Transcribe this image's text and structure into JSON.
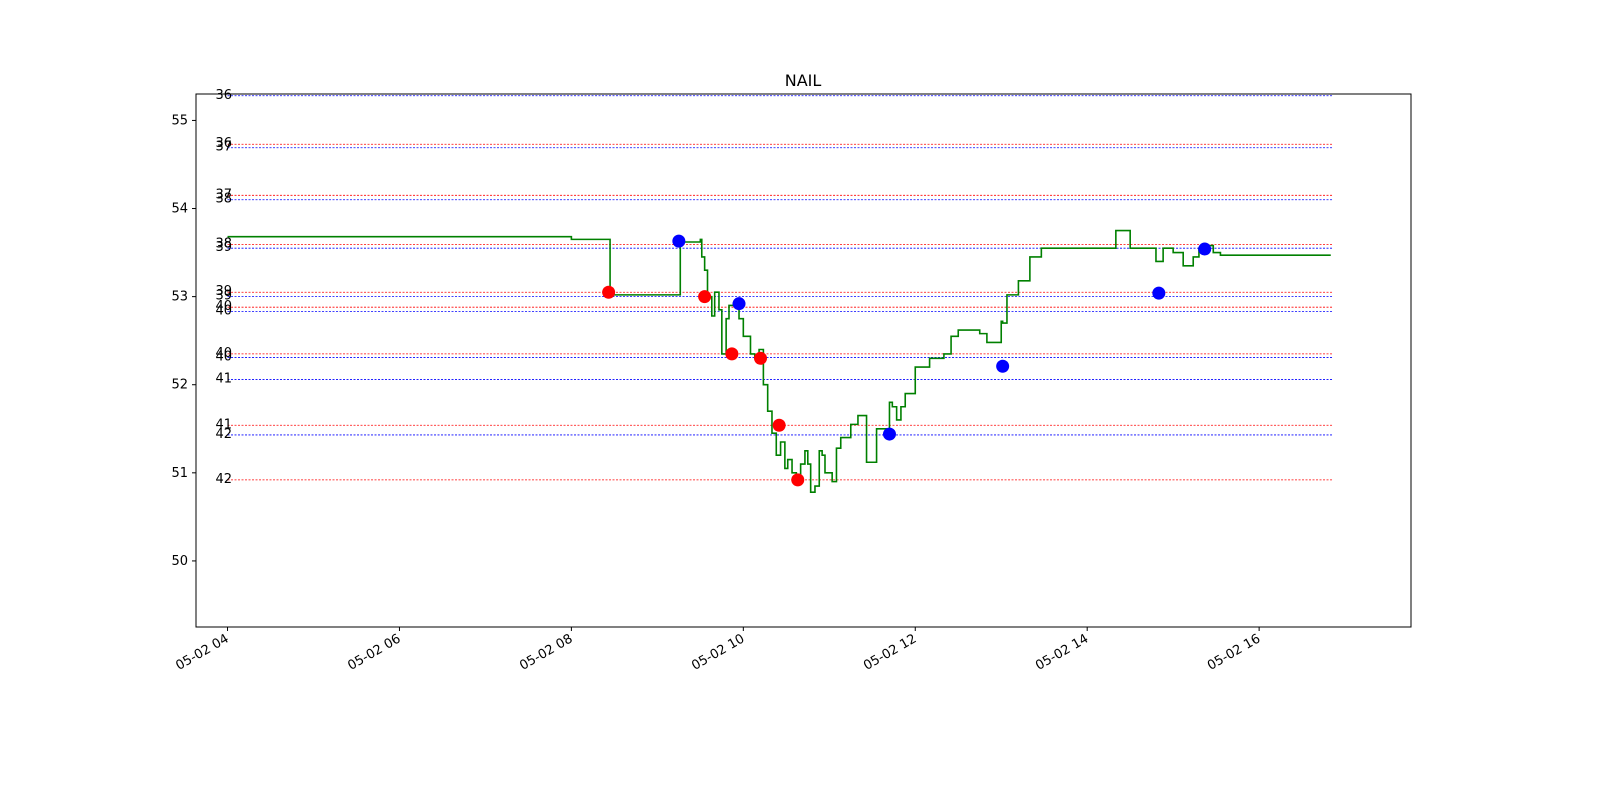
{
  "chart_data": {
    "type": "line",
    "title": "NAIL",
    "xlabel": "",
    "ylabel": "",
    "ylim": [
      49.25,
      55.3
    ],
    "xlim": [
      "05-02 03:38",
      "05-02 17:46"
    ],
    "grid": false,
    "x_ticks": [
      "05-02 04",
      "05-02 06",
      "05-02 08",
      "05-02 10",
      "05-02 12",
      "05-02 14",
      "05-02 16"
    ],
    "y_ticks": [
      50,
      51,
      52,
      53,
      54,
      55
    ],
    "colors": {
      "price": "#008000",
      "buy": "#ff0000",
      "sell": "#0000ff",
      "frame": "#000000"
    },
    "series": [
      {
        "type": "line",
        "x": [
          "05-02 04:00",
          "05-02 08:00",
          "05-02 08:00",
          "05-02 08:26",
          "05-02 08:27",
          "05-02 09:15",
          "05-02 09:16",
          "05-02 09:30",
          "05-02 09:31",
          "05-02 09:33",
          "05-02 09:35",
          "05-02 09:38",
          "05-02 09:40",
          "05-02 09:43",
          "05-02 09:45",
          "05-02 09:48",
          "05-02 09:50",
          "05-02 09:53",
          "05-02 09:55",
          "05-02 09:57",
          "05-02 10:00",
          "05-02 10:05",
          "05-02 10:08",
          "05-02 10:11",
          "05-02 10:14",
          "05-02 10:17",
          "05-02 10:20",
          "05-02 10:23",
          "05-02 10:26",
          "05-02 10:29",
          "05-02 10:31",
          "05-02 10:34",
          "05-02 10:37",
          "05-02 10:40",
          "05-02 10:43",
          "05-02 10:45",
          "05-02 10:47",
          "05-02 10:50",
          "05-02 10:53",
          "05-02 10:55",
          "05-02 10:57",
          "05-02 11:02",
          "05-02 11:05",
          "05-02 11:08",
          "05-02 11:15",
          "05-02 11:20",
          "05-02 11:22",
          "05-02 11:26",
          "05-02 11:28",
          "05-02 11:33",
          "05-02 11:35",
          "05-02 11:42",
          "05-02 11:44",
          "05-02 11:47",
          "05-02 11:50",
          "05-02 11:53",
          "05-02 12:00",
          "05-02 12:10",
          "05-02 12:20",
          "05-02 12:25",
          "05-02 12:30",
          "05-02 12:35",
          "05-02 12:45",
          "05-02 12:50",
          "05-02 12:55",
          "05-02 13:00",
          "05-02 13:01",
          "05-02 13:04",
          "05-02 13:12",
          "05-02 13:20",
          "05-02 13:28",
          "05-02 14:20",
          "05-02 14:30",
          "05-02 14:48",
          "05-02 14:53",
          "05-02 15:00",
          "05-02 15:07",
          "05-02 15:14",
          "05-02 15:18",
          "05-02 15:23",
          "05-02 15:28",
          "05-02 15:33",
          "05-02 15:38",
          "05-02 15:43",
          "05-02 15:48",
          "05-02 15:55",
          "05-02 16:00",
          "05-02 16:10",
          "05-02 16:50"
        ],
        "values": [
          53.68,
          53.68,
          53.65,
          53.65,
          53.02,
          53.02,
          53.62,
          53.65,
          53.45,
          53.3,
          53.0,
          52.78,
          53.05,
          52.85,
          52.35,
          52.75,
          52.9,
          52.92,
          52.9,
          52.75,
          52.55,
          52.35,
          52.3,
          52.4,
          52.0,
          51.7,
          51.45,
          51.2,
          51.35,
          51.05,
          51.15,
          51.0,
          50.98,
          51.1,
          51.25,
          51.1,
          50.78,
          50.85,
          51.25,
          51.2,
          51.0,
          50.9,
          51.28,
          51.4,
          51.55,
          51.65,
          51.65,
          51.12,
          51.12,
          51.5,
          51.5,
          51.8,
          51.75,
          51.6,
          51.75,
          51.9,
          52.2,
          52.3,
          52.35,
          52.55,
          52.62,
          52.62,
          52.58,
          52.48,
          52.48,
          52.72,
          52.7,
          53.02,
          53.18,
          53.45,
          53.55,
          53.75,
          53.55,
          53.4,
          53.55,
          53.5,
          53.35,
          53.45,
          53.55,
          53.58,
          53.5,
          53.47,
          53.47,
          53.47,
          53.47,
          53.47,
          53.47,
          53.47,
          53.47
        ],
        "step": true
      }
    ],
    "markers": [
      {
        "kind": "buy",
        "x": "05-02 08:26",
        "y": 53.05
      },
      {
        "kind": "sell",
        "x": "05-02 09:15",
        "y": 53.63
      },
      {
        "kind": "buy",
        "x": "05-02 09:33",
        "y": 53.0
      },
      {
        "kind": "buy",
        "x": "05-02 09:52",
        "y": 52.35
      },
      {
        "kind": "sell",
        "x": "05-02 09:57",
        "y": 52.92
      },
      {
        "kind": "buy",
        "x": "05-02 10:12",
        "y": 52.3
      },
      {
        "kind": "buy",
        "x": "05-02 10:25",
        "y": 51.54
      },
      {
        "kind": "buy",
        "x": "05-02 10:38",
        "y": 50.92
      },
      {
        "kind": "sell",
        "x": "05-02 11:42",
        "y": 51.44
      },
      {
        "kind": "sell",
        "x": "05-02 13:01",
        "y": 52.21
      },
      {
        "kind": "sell",
        "x": "05-02 14:50",
        "y": 53.04
      },
      {
        "kind": "sell",
        "x": "05-02 15:22",
        "y": 53.54
      }
    ],
    "levels": [
      {
        "label": "36",
        "y": 55.28,
        "color": "blue"
      },
      {
        "label": "36",
        "y": 54.73,
        "color": "red"
      },
      {
        "label": "37",
        "y": 54.69,
        "color": "blue"
      },
      {
        "label": "37",
        "y": 54.15,
        "color": "red"
      },
      {
        "label": "38",
        "y": 54.1,
        "color": "blue"
      },
      {
        "label": "38",
        "y": 53.59,
        "color": "red"
      },
      {
        "label": "39",
        "y": 53.55,
        "color": "blue"
      },
      {
        "label": "39",
        "y": 53.05,
        "color": "red"
      },
      {
        "label": "39",
        "y": 53.0,
        "color": "blue"
      },
      {
        "label": "40",
        "y": 52.88,
        "color": "red"
      },
      {
        "label": "40",
        "y": 52.83,
        "color": "blue"
      },
      {
        "label": "40",
        "y": 52.35,
        "color": "red"
      },
      {
        "label": "40",
        "y": 52.31,
        "color": "blue"
      },
      {
        "label": "41",
        "y": 52.06,
        "color": "blue"
      },
      {
        "label": "41",
        "y": 51.54,
        "color": "red"
      },
      {
        "label": "42",
        "y": 51.43,
        "color": "blue"
      },
      {
        "label": "42",
        "y": 50.92,
        "color": "red"
      }
    ]
  }
}
